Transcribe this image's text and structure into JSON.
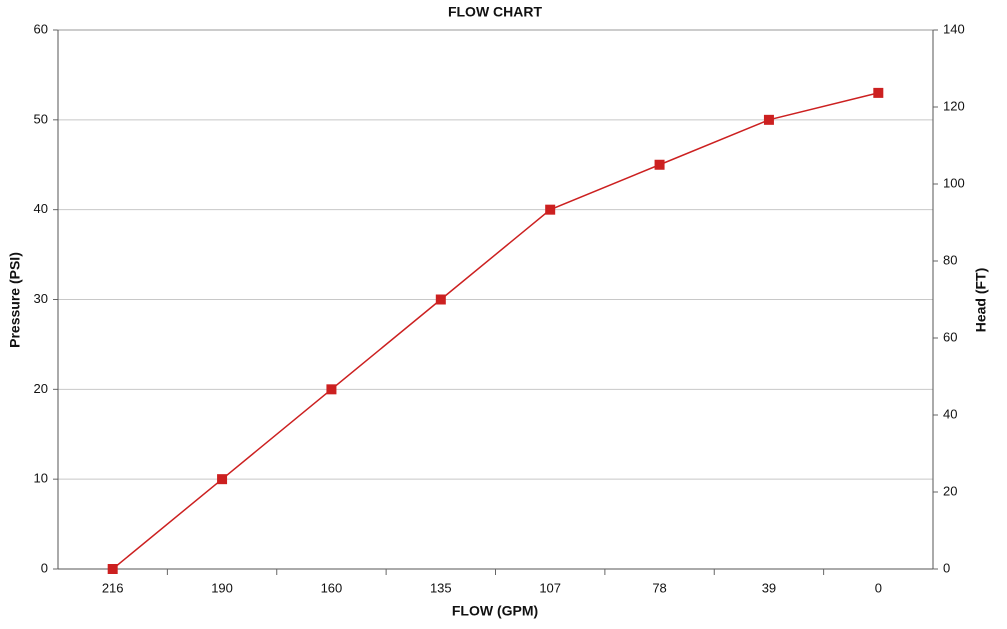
{
  "chart_data": {
    "type": "line",
    "title": "FLOW CHART",
    "x_label": "FLOW (GPM)",
    "y_label": "Pressure (PSI)",
    "y2_label": "Head (FT)",
    "categories": [
      "216",
      "190",
      "160",
      "135",
      "107",
      "78",
      "39",
      "0"
    ],
    "values": [
      0,
      10,
      20,
      30,
      40,
      45,
      50,
      53
    ],
    "color": "#cc2020",
    "ylim": [
      0,
      60
    ],
    "yticks": [
      0,
      10,
      20,
      30,
      40,
      50,
      60
    ],
    "y2lim": [
      0,
      140
    ],
    "y2ticks": [
      0,
      20,
      40,
      60,
      80,
      100,
      120,
      140
    ],
    "grid": true
  }
}
